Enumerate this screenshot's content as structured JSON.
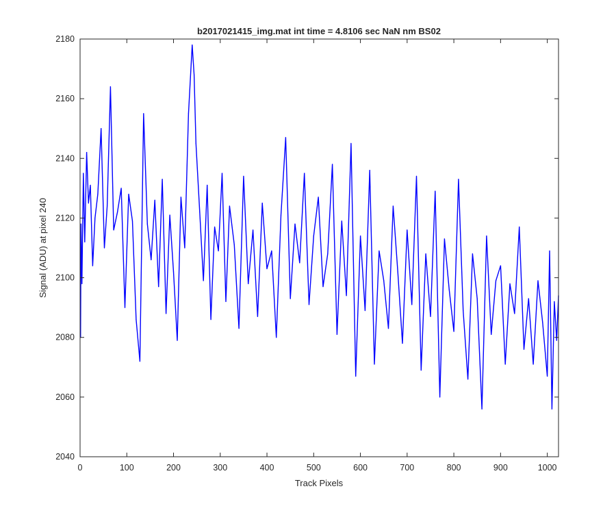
{
  "chart_data": {
    "type": "line",
    "title": "b2017021415_img.mat int time = 4.8106 sec  NaN nm BS02",
    "xlabel": "Track Pixels",
    "ylabel": "Signal (ADU) at pixel 240",
    "xlim": [
      0,
      1024
    ],
    "ylim": [
      2040,
      2180
    ],
    "xticks": [
      0,
      100,
      200,
      300,
      400,
      500,
      600,
      700,
      800,
      900,
      1000
    ],
    "yticks": [
      2040,
      2060,
      2080,
      2100,
      2120,
      2140,
      2160,
      2180
    ],
    "grid": false,
    "line_color": "#0000ff",
    "series": [
      {
        "points_x": [
          1,
          2,
          4,
          7,
          10,
          14,
          18,
          22,
          27,
          32,
          38,
          45,
          52,
          58,
          65,
          72,
          80,
          88,
          96,
          104,
          112,
          120,
          128,
          136,
          144,
          152,
          160,
          168,
          176,
          184,
          192,
          200,
          208,
          216,
          224,
          232,
          240,
          244,
          248,
          256,
          264,
          272,
          280,
          288,
          296,
          304,
          312,
          320,
          330,
          340,
          350,
          360,
          370,
          380,
          390,
          400,
          410,
          420,
          430,
          440,
          450,
          460,
          470,
          480,
          490,
          500,
          510,
          520,
          530,
          540,
          550,
          560,
          570,
          580,
          590,
          600,
          610,
          620,
          630,
          640,
          650,
          660,
          670,
          680,
          690,
          700,
          710,
          720,
          730,
          740,
          750,
          760,
          770,
          780,
          790,
          800,
          810,
          820,
          830,
          840,
          850,
          860,
          870,
          880,
          890,
          900,
          910,
          920,
          930,
          940,
          950,
          960,
          970,
          980,
          990,
          1000,
          1005,
          1010,
          1015,
          1020,
          1024
        ],
        "values": [
          2080,
          2118,
          2098,
          2135,
          2112,
          2142,
          2125,
          2131,
          2104,
          2120,
          2128,
          2150,
          2110,
          2124,
          2164,
          2116,
          2122,
          2130,
          2090,
          2128,
          2119,
          2086,
          2072,
          2155,
          2118,
          2106,
          2126,
          2097,
          2133,
          2088,
          2121,
          2102,
          2079,
          2127,
          2110,
          2155,
          2178,
          2168,
          2145,
          2122,
          2099,
          2131,
          2086,
          2117,
          2109,
          2135,
          2092,
          2124,
          2111,
          2083,
          2134,
          2098,
          2116,
          2087,
          2125,
          2103,
          2109,
          2080,
          2121,
          2147,
          2093,
          2118,
          2105,
          2135,
          2091,
          2114,
          2127,
          2097,
          2108,
          2138,
          2081,
          2119,
          2094,
          2145,
          2067,
          2114,
          2089,
          2136,
          2071,
          2109,
          2099,
          2083,
          2124,
          2102,
          2078,
          2116,
          2091,
          2134,
          2069,
          2108,
          2087,
          2129,
          2060,
          2113,
          2096,
          2082,
          2133,
          2089,
          2066,
          2108,
          2093,
          2056,
          2114,
          2081,
          2099,
          2104,
          2071,
          2098,
          2088,
          2117,
          2076,
          2093,
          2071,
          2099,
          2085,
          2067,
          2109,
          2056,
          2092,
          2079,
          2094
        ]
      }
    ]
  }
}
